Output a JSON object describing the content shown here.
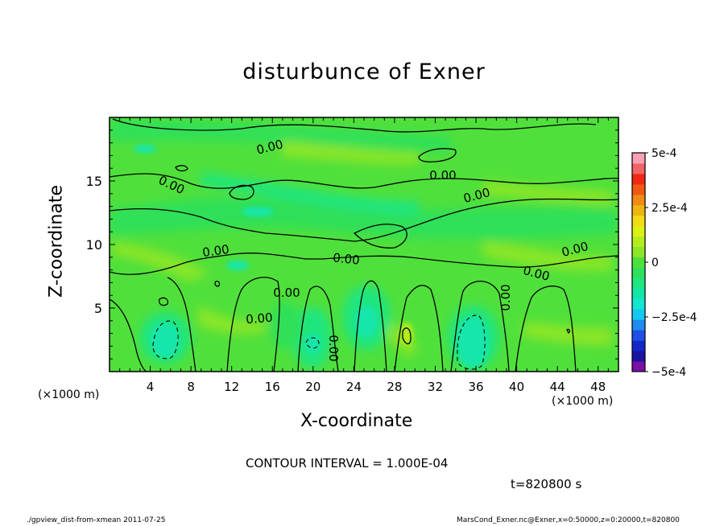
{
  "chart_data": {
    "type": "heatmap",
    "title": "disturbunce of Exner",
    "xlabel": "X-coordinate",
    "ylabel": "Z-coordinate",
    "x_unit": "(×1000 m)",
    "x_unit_right": "(×1000 m)",
    "xlim": [
      0,
      50
    ],
    "ylim": [
      0,
      20
    ],
    "x_ticks": [
      4,
      8,
      12,
      16,
      20,
      24,
      28,
      32,
      36,
      40,
      44,
      48
    ],
    "y_ticks": [
      5,
      10,
      15
    ],
    "contour_labels": [
      "0.00",
      "0.00",
      "0.00",
      "0.00",
      "0.00",
      "0.00",
      "0.00",
      "0.00",
      "0.00",
      "0.00",
      "0.00",
      "0.00"
    ],
    "colorbar": {
      "tick_labels": [
        "5e-4",
        "2.5e-4",
        "0",
        "−2.5e-4",
        "−5e-4"
      ],
      "tick_values": [
        0.0005,
        0.00025,
        0,
        -0.00025,
        -0.0005
      ],
      "levels": [
        -0.0005,
        -0.00045,
        -0.0004,
        -0.00035,
        -0.0003,
        -0.00025,
        -0.0002,
        -0.00015,
        -0.0001,
        -5e-05,
        0,
        5e-05,
        0.0001,
        0.00015,
        0.0002,
        0.00025,
        0.0003,
        0.00035,
        0.0004,
        0.00045,
        0.0005
      ],
      "colors": [
        "#7a10a8",
        "#1a14a0",
        "#1428c8",
        "#1e50e6",
        "#1e8cf0",
        "#14c8f0",
        "#14e6d2",
        "#14e6aa",
        "#1ee682",
        "#2ee05a",
        "#50e03c",
        "#8ce628",
        "#b4ec1e",
        "#dcf014",
        "#f0dc14",
        "#f0b414",
        "#f08c14",
        "#f05a14",
        "#f02814",
        "#f06464",
        "#f8a0b4"
      ]
    },
    "contour_interval": "CONTOUR INTERVAL = 1.000E-04",
    "time": "t=820800 s",
    "regions": [
      {
        "level": "negative",
        "x": [
          4.5,
          6.5
        ],
        "z": [
          1,
          4
        ]
      },
      {
        "level": "negative",
        "x": [
          34,
          37
        ],
        "z": [
          1,
          4.5
        ]
      },
      {
        "level": "negative",
        "x": [
          19.5,
          20.5
        ],
        "z": [
          1.5,
          2.5
        ]
      },
      {
        "level": "positive",
        "x": [
          29,
          30
        ],
        "z": [
          2.5,
          3.5
        ]
      }
    ]
  },
  "footer": {
    "left": "./gpview_dist-from-xmean  2011-07-25",
    "right": "MarsCond_Exner.nc@Exner,x=0:50000,z=0:20000,t=820800"
  }
}
